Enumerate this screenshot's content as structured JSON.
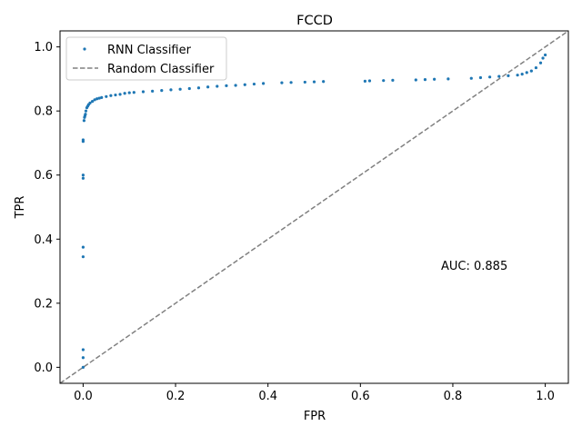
{
  "chart_data": {
    "type": "scatter",
    "title": "FCCD",
    "xlabel": "FPR",
    "ylabel": "TPR",
    "xlim": [
      -0.05,
      1.05
    ],
    "ylim": [
      -0.05,
      1.05
    ],
    "xticks": [
      "0.0",
      "0.2",
      "0.4",
      "0.6",
      "0.8",
      "1.0"
    ],
    "yticks": [
      "0.0",
      "0.2",
      "0.4",
      "0.6",
      "0.8",
      "1.0"
    ],
    "xtick_values": [
      0,
      0.2,
      0.4,
      0.6,
      0.8,
      1.0
    ],
    "ytick_values": [
      0,
      0.2,
      0.4,
      0.6,
      0.8,
      1.0
    ],
    "grid": false,
    "legend_placement": "top-left",
    "annotation": "AUC: 0.885",
    "series": [
      {
        "name": "RNN Classifier",
        "kind": "scatter",
        "color": "#1f77b4",
        "x": [
          0,
          0,
          0,
          0,
          0,
          0,
          0,
          0,
          0,
          0.002,
          0.003,
          0.004,
          0.005,
          0.006,
          0.008,
          0.01,
          0.012,
          0.015,
          0.02,
          0.025,
          0.03,
          0.035,
          0.04,
          0.05,
          0.06,
          0.07,
          0.08,
          0.09,
          0.1,
          0.11,
          0.13,
          0.15,
          0.17,
          0.19,
          0.21,
          0.23,
          0.25,
          0.27,
          0.29,
          0.31,
          0.33,
          0.35,
          0.37,
          0.39,
          0.43,
          0.45,
          0.48,
          0.5,
          0.52,
          0.61,
          0.62,
          0.65,
          0.67,
          0.72,
          0.74,
          0.76,
          0.79,
          0.84,
          0.86,
          0.88,
          0.9,
          0.92,
          0.94,
          0.95,
          0.96,
          0.97,
          0.98,
          0.99,
          0.995,
          1.0
        ],
        "y": [
          0.0,
          0.03,
          0.055,
          0.345,
          0.375,
          0.59,
          0.6,
          0.705,
          0.71,
          0.77,
          0.78,
          0.785,
          0.79,
          0.8,
          0.81,
          0.815,
          0.82,
          0.825,
          0.83,
          0.835,
          0.838,
          0.84,
          0.842,
          0.845,
          0.848,
          0.85,
          0.852,
          0.855,
          0.857,
          0.858,
          0.86,
          0.862,
          0.864,
          0.866,
          0.868,
          0.87,
          0.872,
          0.875,
          0.877,
          0.879,
          0.88,
          0.882,
          0.884,
          0.886,
          0.888,
          0.889,
          0.89,
          0.891,
          0.892,
          0.893,
          0.894,
          0.895,
          0.896,
          0.897,
          0.898,
          0.899,
          0.9,
          0.902,
          0.904,
          0.906,
          0.908,
          0.91,
          0.912,
          0.915,
          0.92,
          0.925,
          0.935,
          0.95,
          0.965,
          0.975
        ]
      },
      {
        "name": "Random Classifier",
        "kind": "line",
        "style": "dashed",
        "color": "#808080",
        "x": [
          -0.05,
          1.05
        ],
        "y": [
          -0.05,
          1.05
        ]
      }
    ]
  }
}
